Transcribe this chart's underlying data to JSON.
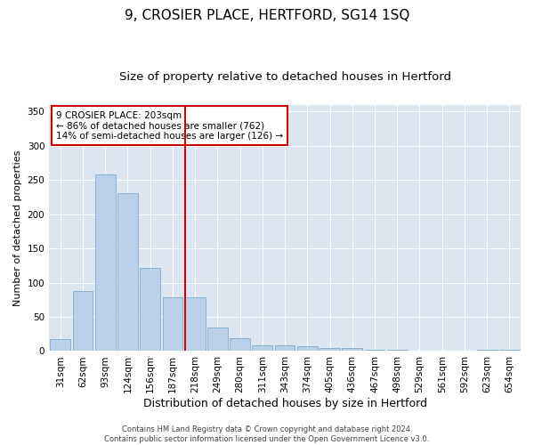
{
  "title": "9, CROSIER PLACE, HERTFORD, SG14 1SQ",
  "subtitle": "Size of property relative to detached houses in Hertford",
  "xlabel": "Distribution of detached houses by size in Hertford",
  "ylabel": "Number of detached properties",
  "footer_line1": "Contains HM Land Registry data © Crown copyright and database right 2024.",
  "footer_line2": "Contains public sector information licensed under the Open Government Licence v3.0.",
  "annotation_line1": "9 CROSIER PLACE: 203sqm",
  "annotation_line2": "← 86% of detached houses are smaller (762)",
  "annotation_line3": "14% of semi-detached houses are larger (126) →",
  "bar_color": "#bad0e8",
  "bar_edge_color": "#7aafd4",
  "vline_color": "#cc0000",
  "background_color": "#dde6f0",
  "categories": [
    "31sqm",
    "62sqm",
    "93sqm",
    "124sqm",
    "156sqm",
    "187sqm",
    "218sqm",
    "249sqm",
    "280sqm",
    "311sqm",
    "343sqm",
    "374sqm",
    "405sqm",
    "436sqm",
    "467sqm",
    "498sqm",
    "529sqm",
    "561sqm",
    "592sqm",
    "623sqm",
    "654sqm"
  ],
  "values": [
    18,
    88,
    258,
    231,
    121,
    79,
    79,
    35,
    19,
    9,
    8,
    7,
    5,
    4,
    2,
    2,
    1,
    0,
    0,
    2,
    2
  ],
  "vline_x": 6,
  "ylim": [
    0,
    360
  ],
  "yticks": [
    0,
    50,
    100,
    150,
    200,
    250,
    300,
    350
  ],
  "title_fontsize": 11,
  "subtitle_fontsize": 9.5,
  "xlabel_fontsize": 9,
  "ylabel_fontsize": 8,
  "tick_fontsize": 7.5,
  "annotation_fontsize": 7.5,
  "footer_fontsize": 6
}
